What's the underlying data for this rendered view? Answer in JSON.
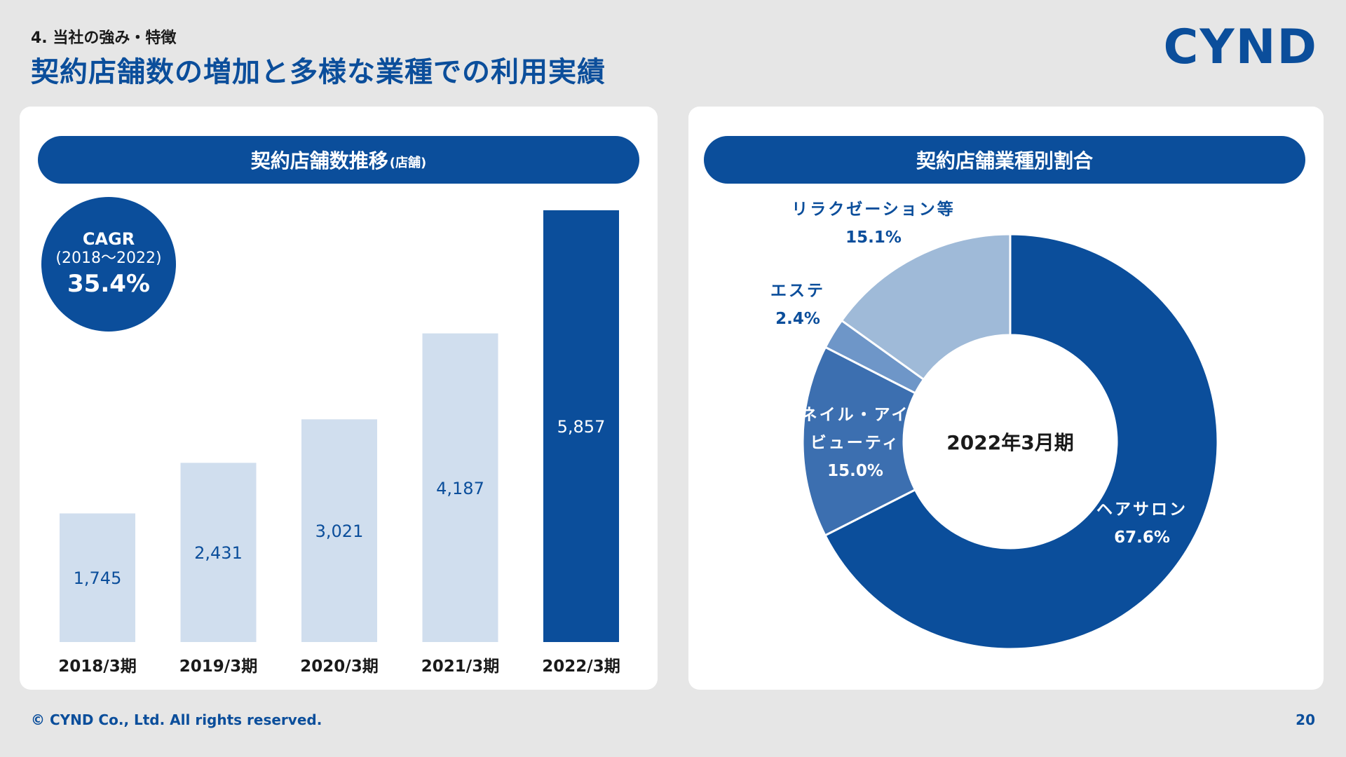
{
  "header": {
    "section_label": "4. 当社の強み・特徴",
    "title": "契約店舗数の増加と多様な業種での利用実績",
    "logo_text": "CYND"
  },
  "left_panel": {
    "title": "契約店舗数推移",
    "title_unit": "(店舗)",
    "cagr": {
      "label": "CAGR",
      "period": "(2018～2022)",
      "value": "35.4%"
    }
  },
  "right_panel": {
    "title": "契約店舗業種別割合"
  },
  "footer": {
    "copyright": "© CYND Co., Ltd. All rights reserved.",
    "page_number": "20"
  },
  "colors": {
    "primary": "#0b4e9b",
    "bar_light": "#d0deee",
    "donut_mid": "#3c6fb0",
    "donut_light": "#9fbad8",
    "donut_lighter": "#6e96c8"
  },
  "chart_data": [
    {
      "type": "bar",
      "categories": [
        "2018/3期",
        "2019/3期",
        "2020/3期",
        "2021/3期",
        "2022/3期"
      ],
      "values": [
        1745,
        2431,
        3021,
        4187,
        5857
      ],
      "value_labels": [
        "1,745",
        "2,431",
        "3,021",
        "4,187",
        "5,857"
      ],
      "highlight_index": 4,
      "ylim": [
        0,
        5857
      ]
    },
    {
      "type": "pie",
      "center_label": "2022年3月期",
      "slices": [
        {
          "label": "ヘアサロン",
          "value": 67.6,
          "value_label": "67.6%"
        },
        {
          "label": "ネイル・アイ\nビューティ",
          "value": 15.0,
          "value_label": "15.0%"
        },
        {
          "label": "エステ",
          "value": 2.4,
          "value_label": "2.4%"
        },
        {
          "label": "リラクゼーション等",
          "value": 15.1,
          "value_label": "15.1%"
        }
      ]
    }
  ]
}
